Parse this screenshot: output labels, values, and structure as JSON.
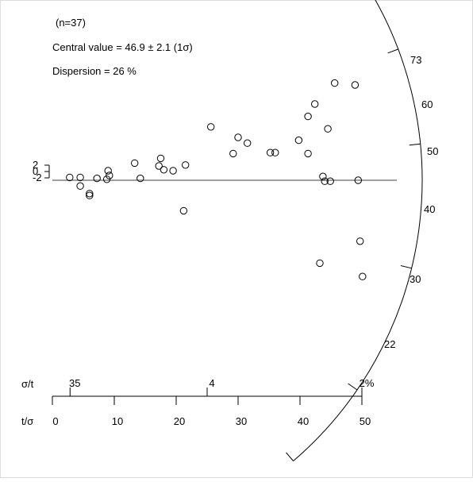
{
  "chart_data": {
    "type": "scatter",
    "subtype": "radial-plot",
    "annotations": {
      "n": "(n=37)",
      "central_value": "Central value = 46.9 ± 2.1  (1σ)",
      "dispersion": "Dispersion = 26 %"
    },
    "central_value": 46.9,
    "radial_axis": {
      "label_top": "73",
      "label_bottom": "22",
      "ticks": [
        73,
        60,
        50,
        40,
        30,
        22
      ],
      "tick_labels": [
        "60",
        "50",
        "40",
        "30"
      ]
    },
    "standard_estimate_scale": {
      "ticks": [
        2,
        0,
        -2
      ],
      "labels": [
        "2",
        "0",
        "-2"
      ]
    },
    "precision_axis": {
      "label": "t/σ",
      "ticks": [
        0,
        10,
        20,
        30,
        40,
        50
      ],
      "tick_labels": [
        "0",
        "10",
        "20",
        "30",
        "40",
        "50"
      ],
      "range": [
        0,
        50
      ]
    },
    "relative_error_axis": {
      "label": "σ/t",
      "ticks": [
        35,
        4,
        2
      ],
      "tick_labels": [
        "35",
        "4",
        "2%"
      ]
    },
    "points": [
      {
        "x": 2.8,
        "y": 0.3
      },
      {
        "x": 4.5,
        "y": 0.3
      },
      {
        "x": 4.5,
        "y": -0.6
      },
      {
        "x": 6.0,
        "y": -1.6
      },
      {
        "x": 6.0,
        "y": -1.4
      },
      {
        "x": 7.2,
        "y": 0.2
      },
      {
        "x": 8.8,
        "y": 0.1
      },
      {
        "x": 9.0,
        "y": 1.0
      },
      {
        "x": 9.2,
        "y": 0.5
      },
      {
        "x": 13.3,
        "y": 1.8
      },
      {
        "x": 14.2,
        "y": 0.2
      },
      {
        "x": 17.2,
        "y": 1.5
      },
      {
        "x": 17.5,
        "y": 2.3
      },
      {
        "x": 18.0,
        "y": 1.1
      },
      {
        "x": 19.5,
        "y": 1.0
      },
      {
        "x": 21.2,
        "y": -3.2
      },
      {
        "x": 21.5,
        "y": 1.6
      },
      {
        "x": 25.6,
        "y": 5.6
      },
      {
        "x": 29.2,
        "y": 2.8
      },
      {
        "x": 30.0,
        "y": 4.5
      },
      {
        "x": 31.5,
        "y": 3.9
      },
      {
        "x": 35.2,
        "y": 2.9
      },
      {
        "x": 36.0,
        "y": 2.9
      },
      {
        "x": 39.8,
        "y": 4.2
      },
      {
        "x": 41.3,
        "y": 6.7
      },
      {
        "x": 41.3,
        "y": 2.8
      },
      {
        "x": 42.4,
        "y": 8.0
      },
      {
        "x": 43.2,
        "y": -8.7
      },
      {
        "x": 43.7,
        "y": 0.4
      },
      {
        "x": 44.0,
        "y": -0.1
      },
      {
        "x": 44.5,
        "y": 5.4
      },
      {
        "x": 44.9,
        "y": -0.1
      },
      {
        "x": 45.6,
        "y": 10.2
      },
      {
        "x": 48.9,
        "y": 10.0
      },
      {
        "x": 49.4,
        "y": 0.0
      },
      {
        "x": 49.7,
        "y": -6.4
      },
      {
        "x": 50.1,
        "y": -10.1
      }
    ]
  }
}
